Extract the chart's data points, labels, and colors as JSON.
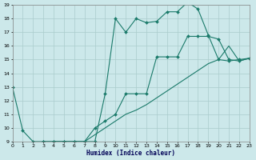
{
  "xlabel": "Humidex (Indice chaleur)",
  "bg_color": "#cce8ea",
  "grid_color": "#aacccc",
  "line_color": "#1a7a6a",
  "line1_x": [
    0,
    1,
    2,
    3,
    4,
    5,
    6,
    7,
    8,
    9,
    10,
    11,
    12,
    13,
    14,
    15,
    16,
    17,
    18,
    19,
    20,
    21,
    22,
    23
  ],
  "line1_y": [
    13.0,
    9.8,
    9.0,
    9.0,
    9.0,
    9.0,
    9.0,
    9.0,
    9.0,
    12.5,
    18.0,
    17.0,
    18.0,
    17.7,
    17.8,
    18.5,
    18.5,
    19.2,
    18.7,
    16.8,
    15.0,
    14.9,
    15.0,
    15.1
  ],
  "line2_x": [
    3,
    4,
    5,
    6,
    7,
    8,
    9,
    10,
    11,
    12,
    13,
    14,
    15,
    16,
    17,
    18,
    19,
    20,
    21,
    22,
    23
  ],
  "line2_y": [
    9.0,
    9.0,
    9.0,
    9.0,
    9.0,
    10.0,
    10.5,
    11.0,
    12.5,
    12.5,
    12.5,
    15.2,
    15.2,
    15.2,
    16.7,
    16.7,
    16.7,
    16.5,
    15.0,
    14.9,
    15.1
  ],
  "line3_x": [
    4,
    5,
    6,
    7,
    8,
    9,
    10,
    11,
    12,
    13,
    14,
    15,
    16,
    17,
    18,
    19,
    20,
    21,
    22,
    23
  ],
  "line3_y": [
    9.0,
    9.0,
    9.0,
    9.0,
    9.5,
    10.0,
    10.5,
    11.0,
    11.3,
    11.7,
    12.2,
    12.7,
    13.2,
    13.7,
    14.2,
    14.7,
    15.0,
    16.0,
    14.9,
    15.1
  ],
  "ylim": [
    9,
    19
  ],
  "xlim": [
    0,
    23
  ],
  "yticks": [
    9,
    10,
    11,
    12,
    13,
    14,
    15,
    16,
    17,
    18,
    19
  ],
  "xticks": [
    0,
    1,
    2,
    3,
    4,
    5,
    6,
    7,
    8,
    9,
    10,
    11,
    12,
    13,
    14,
    15,
    16,
    17,
    18,
    19,
    20,
    21,
    22,
    23
  ]
}
